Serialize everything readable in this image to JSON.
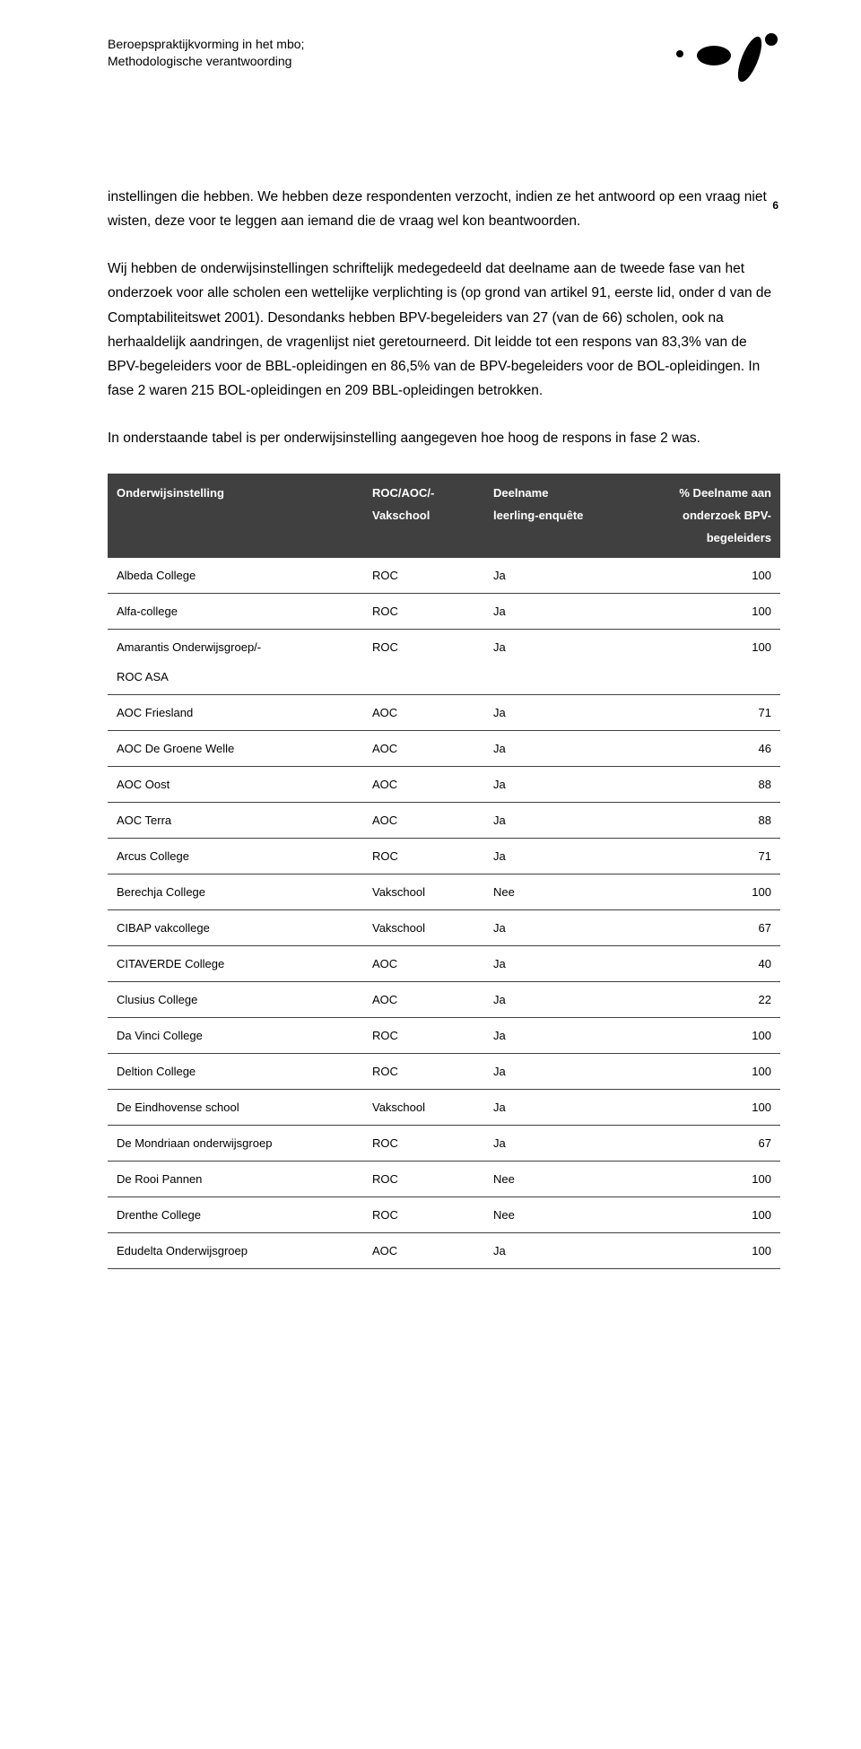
{
  "header": {
    "line1": "Beroepspraktijkvorming in het mbo;",
    "line2": "Methodologische verantwoording"
  },
  "page_number": "6",
  "paragraphs": {
    "p1": "instellingen die hebben. We hebben deze respondenten verzocht, indien ze het antwoord op een vraag niet wisten, deze voor te leggen aan iemand die de vraag wel kon beantwoorden.",
    "p2": "Wij hebben de onderwijsinstellingen schriftelijk medegedeeld dat deelname aan de tweede fase van het onderzoek voor alle scholen een wettelijke verplichting is (op grond van artikel 91, eerste lid, onder d van de Comptabiliteitswet 2001). Desondanks hebben BPV-begeleiders van 27 (van de 66) scholen, ook na herhaaldelijk aandringen, de vragenlijst niet geretourneerd. Dit leidde tot een respons van 83,3% van de BPV-begeleiders voor de BBL-opleidingen en 86,5% van de BPV-begeleiders voor de BOL-opleidingen. In fase 2 waren 215 BOL-opleidingen en 209 BBL-opleidingen betrokken.",
    "p3": "In onderstaande tabel is per onderwijsinstelling aangegeven hoe hoog de respons in fase 2 was."
  },
  "table": {
    "header_bg": "#404040",
    "header_fg": "#ffffff",
    "border_color": "#404040",
    "columns": {
      "c1": "Onderwijsinstelling",
      "c2a": "ROC/AOC/-",
      "c2b": "Vakschool",
      "c3a": "Deelname",
      "c3b": "leerling-enquête",
      "c4a": "% Deelname aan",
      "c4b": "onderzoek BPV-",
      "c4c": "begeleiders"
    },
    "rows": [
      {
        "inst": "Albeda College",
        "type": "ROC",
        "deel": "Ja",
        "pct": "100"
      },
      {
        "inst": "Alfa-college",
        "type": "ROC",
        "deel": "Ja",
        "pct": "100"
      },
      {
        "inst": "Amarantis Onderwijsgroep/-\nROC ASA",
        "type": "ROC",
        "deel": "Ja",
        "pct": "100"
      },
      {
        "inst": "AOC Friesland",
        "type": "AOC",
        "deel": "Ja",
        "pct": "71"
      },
      {
        "inst": "AOC De Groene Welle",
        "type": "AOC",
        "deel": "Ja",
        "pct": "46"
      },
      {
        "inst": "AOC Oost",
        "type": "AOC",
        "deel": "Ja",
        "pct": "88"
      },
      {
        "inst": "AOC Terra",
        "type": "AOC",
        "deel": "Ja",
        "pct": "88"
      },
      {
        "inst": "Arcus College",
        "type": "ROC",
        "deel": "Ja",
        "pct": "71"
      },
      {
        "inst": "Berechja College",
        "type": "Vakschool",
        "deel": "Nee",
        "pct": "100"
      },
      {
        "inst": "CIBAP vakcollege",
        "type": "Vakschool",
        "deel": "Ja",
        "pct": "67"
      },
      {
        "inst": "CITAVERDE College",
        "type": "AOC",
        "deel": "Ja",
        "pct": "40"
      },
      {
        "inst": "Clusius College",
        "type": "AOC",
        "deel": "Ja",
        "pct": "22"
      },
      {
        "inst": "Da Vinci College",
        "type": "ROC",
        "deel": "Ja",
        "pct": "100"
      },
      {
        "inst": "Deltion College",
        "type": "ROC",
        "deel": "Ja",
        "pct": "100"
      },
      {
        "inst": "De Eindhovense school",
        "type": "Vakschool",
        "deel": "Ja",
        "pct": "100"
      },
      {
        "inst": "De Mondriaan onderwijsgroep",
        "type": "ROC",
        "deel": "Ja",
        "pct": "67"
      },
      {
        "inst": "De Rooi Pannen",
        "type": "ROC",
        "deel": "Nee",
        "pct": "100"
      },
      {
        "inst": "Drenthe College",
        "type": "ROC",
        "deel": "Nee",
        "pct": "100"
      },
      {
        "inst": "Edudelta Onderwijsgroep",
        "type": "AOC",
        "deel": "Ja",
        "pct": "100"
      }
    ]
  }
}
